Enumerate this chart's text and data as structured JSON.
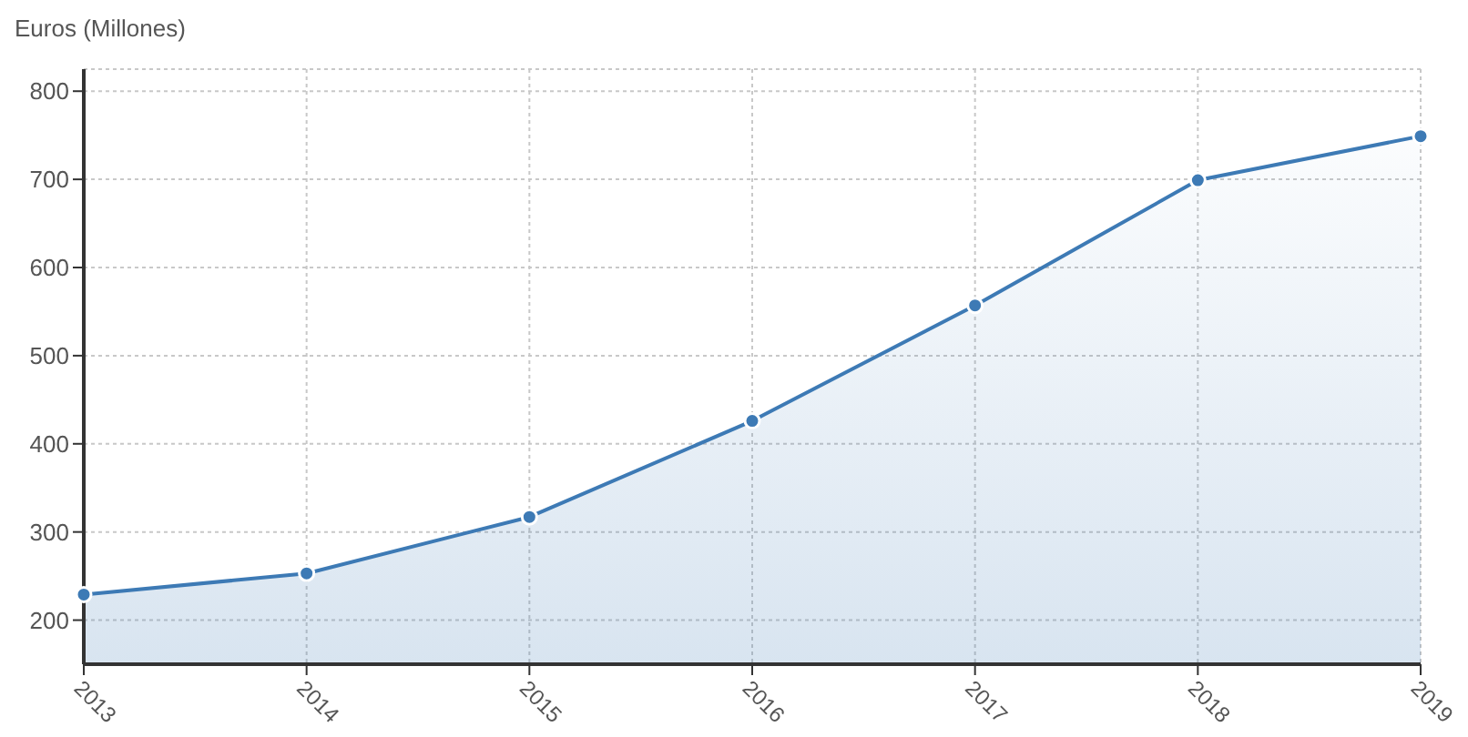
{
  "chart_data": {
    "type": "area",
    "ylabel": "Euros (Millones)",
    "categories": [
      "2013",
      "2014",
      "2015",
      "2016",
      "2017",
      "2018",
      "2019"
    ],
    "series": [
      {
        "color": "#3d7ab5",
        "values": [
          229,
          253,
          317,
          426,
          557,
          699,
          749
        ]
      }
    ],
    "ylim": [
      150,
      825
    ],
    "yticks": [
      200,
      300,
      400,
      500,
      600,
      700,
      800
    ],
    "grid": true,
    "marker": "circle"
  }
}
